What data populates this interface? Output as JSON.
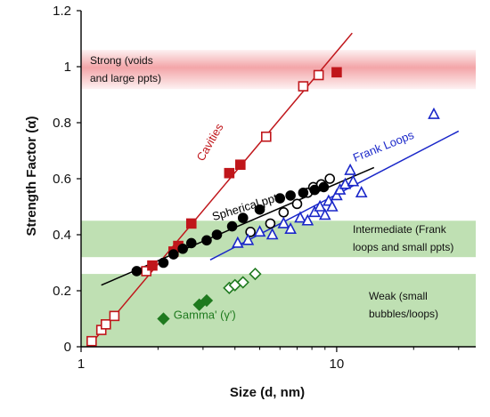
{
  "chart_data": {
    "type": "scatter",
    "xlabel": "Size (d, nm)",
    "ylabel": "Strength Factor (α)",
    "x_scale": "log",
    "xlim": [
      1,
      35
    ],
    "ylim": [
      0,
      1.2
    ],
    "x_ticks": [
      1,
      10
    ],
    "y_ticks": [
      0,
      0.2,
      0.4,
      0.6,
      0.8,
      1.0,
      1.2
    ],
    "x_tick_labels": [
      "1",
      "10"
    ],
    "y_tick_labels": [
      "0",
      "0.2",
      "0.4",
      "0.6",
      "0.8",
      "1",
      "1.2"
    ],
    "colors": {
      "cavities": "#c0161b",
      "spherical": "#000000",
      "frank": "#1a27c9",
      "gamma": "#1f7a1f",
      "strong_band": "#f3a5a8",
      "green_band": "#bfe0b3"
    },
    "bands": [
      {
        "name": "strong",
        "y_range": [
          0.92,
          1.06
        ],
        "color": "#f3a5a8",
        "text_lines": [
          "Strong (voids",
          "and large ppts)"
        ]
      },
      {
        "name": "intermediate",
        "y_range": [
          0.32,
          0.45
        ],
        "color": "#bfe0b3",
        "text_lines": [
          "Intermediate (Frank",
          "loops and small ppts)"
        ]
      },
      {
        "name": "weak",
        "y_range": [
          0,
          0.26
        ],
        "color": "#bfe0b3",
        "text_lines": [
          "Weak (small",
          "bubbles/loops)"
        ]
      }
    ],
    "series": [
      {
        "name": "Cavities",
        "color": "#c0161b",
        "marker": "square",
        "filled": [
          [
            1.9,
            0.29
          ],
          [
            2.3,
            0.34
          ],
          [
            2.4,
            0.36
          ],
          [
            2.7,
            0.44
          ],
          [
            3.8,
            0.62
          ],
          [
            4.2,
            0.65
          ],
          [
            10.0,
            0.98
          ]
        ],
        "open": [
          [
            1.1,
            0.02
          ],
          [
            1.2,
            0.06
          ],
          [
            1.25,
            0.08
          ],
          [
            1.35,
            0.11
          ],
          [
            1.8,
            0.27
          ],
          [
            5.3,
            0.75
          ],
          [
            7.4,
            0.93
          ],
          [
            8.5,
            0.97
          ]
        ],
        "fit": [
          [
            1.07,
            0.0
          ],
          [
            11.5,
            1.12
          ]
        ]
      },
      {
        "name": "Spherical ppts",
        "color": "#000000",
        "marker": "circle",
        "filled": [
          [
            1.65,
            0.27
          ],
          [
            2.1,
            0.3
          ],
          [
            2.3,
            0.33
          ],
          [
            2.5,
            0.35
          ],
          [
            2.7,
            0.37
          ],
          [
            3.1,
            0.38
          ],
          [
            3.4,
            0.4
          ],
          [
            3.9,
            0.43
          ],
          [
            4.3,
            0.46
          ],
          [
            5.0,
            0.49
          ],
          [
            6.0,
            0.53
          ],
          [
            6.6,
            0.54
          ],
          [
            7.4,
            0.55
          ],
          [
            8.2,
            0.56
          ],
          [
            8.9,
            0.57
          ]
        ],
        "open": [
          [
            4.6,
            0.41
          ],
          [
            5.5,
            0.44
          ],
          [
            6.2,
            0.48
          ],
          [
            7.0,
            0.51
          ],
          [
            7.7,
            0.55
          ],
          [
            8.1,
            0.57
          ],
          [
            8.7,
            0.58
          ],
          [
            9.4,
            0.6
          ]
        ],
        "fit": [
          [
            1.2,
            0.22
          ],
          [
            14.0,
            0.64
          ]
        ]
      },
      {
        "name": "Frank Loops",
        "color": "#1a27c9",
        "marker": "triangle",
        "open": [
          [
            4.1,
            0.37
          ],
          [
            4.5,
            0.38
          ],
          [
            5.0,
            0.41
          ],
          [
            5.6,
            0.4
          ],
          [
            6.2,
            0.44
          ],
          [
            6.6,
            0.42
          ],
          [
            7.2,
            0.46
          ],
          [
            7.7,
            0.45
          ],
          [
            8.2,
            0.48
          ],
          [
            8.6,
            0.5
          ],
          [
            9.0,
            0.47
          ],
          [
            9.3,
            0.52
          ],
          [
            9.6,
            0.5
          ],
          [
            10.0,
            0.54
          ],
          [
            10.3,
            0.56
          ],
          [
            10.8,
            0.58
          ],
          [
            11.3,
            0.63
          ],
          [
            11.6,
            0.59
          ],
          [
            12.5,
            0.55
          ],
          [
            24.0,
            0.83
          ]
        ],
        "fit": [
          [
            3.2,
            0.31
          ],
          [
            30.0,
            0.77
          ]
        ]
      },
      {
        "name": "Gamma' (γ')",
        "color": "#1f7a1f",
        "marker": "diamond",
        "filled": [
          [
            2.1,
            0.1
          ],
          [
            2.9,
            0.15
          ],
          [
            3.1,
            0.165
          ]
        ],
        "open": [
          [
            3.8,
            0.21
          ],
          [
            4.0,
            0.22
          ],
          [
            4.3,
            0.23
          ],
          [
            4.8,
            0.26
          ]
        ]
      }
    ],
    "series_labels": [
      {
        "series": "Cavities",
        "text": "Cavities",
        "x": 3.0,
        "y": 0.66,
        "rotate": -60
      },
      {
        "series": "Spherical ppts",
        "text": "Spherical ppts",
        "x": 3.3,
        "y": 0.45,
        "rotate": -17
      },
      {
        "series": "Frank Loops",
        "text": "Frank Loops",
        "x": 11.8,
        "y": 0.66,
        "rotate": -22
      },
      {
        "series": "Gamma' (γ')",
        "text": "Gamma' (γ')",
        "x": 2.3,
        "y": 0.1,
        "rotate": 0
      }
    ]
  }
}
